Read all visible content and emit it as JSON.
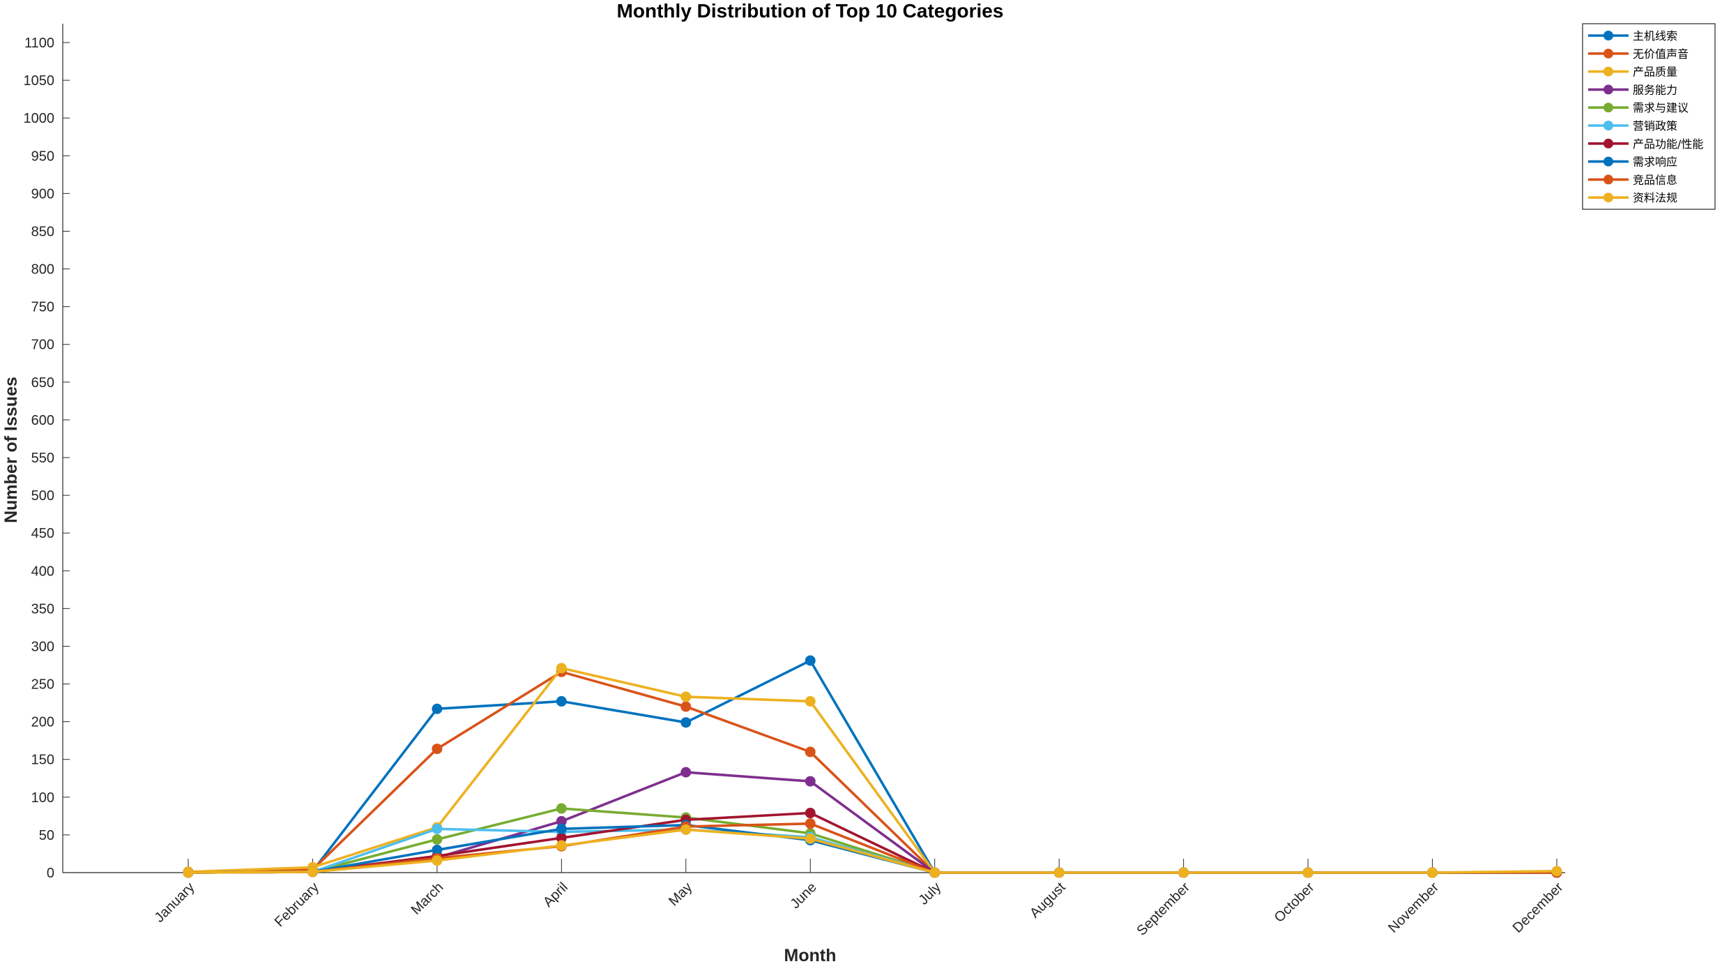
{
  "chart_data": {
    "type": "line",
    "title": "Monthly Distribution of Top 10 Categories",
    "xlabel": "Month",
    "ylabel": "Number of Issues",
    "categories": [
      "January",
      "February",
      "March",
      "April",
      "May",
      "June",
      "July",
      "August",
      "September",
      "October",
      "November",
      "December"
    ],
    "yticks": [
      0,
      50,
      100,
      150,
      200,
      250,
      300,
      350,
      400,
      450,
      500,
      550,
      600,
      650,
      700,
      750,
      800,
      850,
      900,
      950,
      1000,
      1050,
      1100
    ],
    "ylim": [
      0,
      1125
    ],
    "grid": false,
    "legend_position": "top-right",
    "series": [
      {
        "name": "主机线索",
        "color": "#0072BD",
        "values": [
          0,
          2,
          217,
          227,
          199,
          281,
          0,
          0,
          0,
          0,
          0,
          0
        ]
      },
      {
        "name": "无价值声音",
        "color": "#D95319",
        "values": [
          1,
          4,
          164,
          266,
          220,
          160,
          0,
          0,
          0,
          0,
          0,
          0
        ]
      },
      {
        "name": "产品质量",
        "color": "#EDB120",
        "values": [
          1,
          7,
          60,
          271,
          233,
          227,
          0,
          0,
          0,
          0,
          0,
          0
        ]
      },
      {
        "name": "服务能力",
        "color": "#7E2F8E",
        "values": [
          0,
          1,
          20,
          68,
          133,
          121,
          0,
          0,
          0,
          0,
          0,
          0
        ]
      },
      {
        "name": "需求与建议",
        "color": "#77AC30",
        "values": [
          0,
          1,
          44,
          85,
          73,
          52,
          0,
          0,
          0,
          0,
          0,
          0
        ]
      },
      {
        "name": "营销政策",
        "color": "#4DBEEE",
        "values": [
          0,
          1,
          58,
          54,
          57,
          47,
          0,
          0,
          0,
          0,
          0,
          0
        ]
      },
      {
        "name": "产品功能/性能",
        "color": "#A2142F",
        "values": [
          0,
          1,
          22,
          46,
          70,
          79,
          0,
          0,
          0,
          0,
          0,
          0
        ]
      },
      {
        "name": "需求响应",
        "color": "#0072BD",
        "values": [
          0,
          1,
          30,
          58,
          63,
          43,
          0,
          0,
          0,
          0,
          0,
          0
        ]
      },
      {
        "name": "竞品信息",
        "color": "#D95319",
        "values": [
          0,
          1,
          19,
          35,
          61,
          65,
          0,
          0,
          0,
          0,
          0,
          0
        ]
      },
      {
        "name": "资料法规",
        "color": "#EDB120",
        "values": [
          0,
          1,
          16,
          36,
          57,
          45,
          0,
          0,
          0,
          0,
          0,
          2
        ]
      }
    ]
  }
}
